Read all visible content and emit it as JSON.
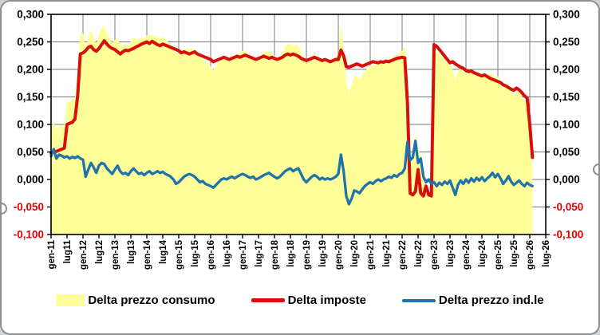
{
  "figure": {
    "background": "#ffffff",
    "border_color": "#8f8f8f",
    "page_background": "#cfd3d6",
    "plot_border_color": "#000000",
    "gridline_color": "#7a7a7a",
    "tick_color": "#000000",
    "axis_label_color": "#000000",
    "negative_label_color": "#e30000"
  },
  "chart_data": {
    "type": "area",
    "x_unit": "month",
    "x_start_label": "gen-11",
    "x_end_label": "lug-26",
    "x_total_months": 186,
    "x_tick_every_months": 6,
    "x_gridline_every_months": 12,
    "x_tick_labels": [
      "gen-11",
      "lug11",
      "gen-12",
      "lug12",
      "gen-13",
      "lug13",
      "gen-14",
      "lug14",
      "gen-15",
      "lug-15",
      "gen-16",
      "lug-16",
      "gen-17",
      "lug-17",
      "gen-18",
      "lug-18",
      "gen-19",
      "lug-19",
      "gen-20",
      "lug-20",
      "gen-21",
      "lug-21",
      "gen-22",
      "lug-22",
      "gen-23",
      "lug-23",
      "gen-24",
      "lug-24",
      "gen-25",
      "lug-25",
      "gen-26",
      "lug-26"
    ],
    "ylim": [
      -0.1,
      0.3
    ],
    "y_step": 0.05,
    "y_ticks": [
      {
        "label": "0,300",
        "value": 0.3
      },
      {
        "label": "0,250",
        "value": 0.25
      },
      {
        "label": "0,200",
        "value": 0.2
      },
      {
        "label": "0,150",
        "value": 0.15
      },
      {
        "label": "0,100",
        "value": 0.1
      },
      {
        "label": "0,050",
        "value": 0.05
      },
      {
        "label": "0,000",
        "value": 0.0
      },
      {
        "label": "-0,050",
        "value": -0.05
      },
      {
        "label": "-0,100",
        "value": -0.1
      }
    ],
    "grid": true,
    "legend_position": "bottom",
    "series": [
      {
        "name": "Delta prezzo consumo",
        "type": "area",
        "color": "#ffff99",
        "values": [
          0.09,
          0.105,
          0.089,
          0.098,
          0.098,
          0.097,
          0.142,
          0.14,
          0.145,
          0.149,
          0.194,
          0.266,
          0.266,
          0.239,
          0.258,
          0.272,
          0.258,
          0.245,
          0.263,
          0.275,
          0.28,
          0.266,
          0.256,
          0.248,
          0.254,
          0.257,
          0.243,
          0.242,
          0.247,
          0.242,
          0.251,
          0.258,
          0.256,
          0.253,
          0.258,
          0.256,
          0.262,
          0.262,
          0.261,
          0.26,
          0.26,
          0.255,
          0.26,
          0.254,
          0.25,
          0.245,
          0.238,
          0.228,
          0.229,
          0.23,
          0.237,
          0.238,
          0.238,
          0.238,
          0.237,
          0.228,
          0.221,
          0.221,
          0.214,
          0.21,
          0.206,
          0.199,
          0.206,
          0.213,
          0.22,
          0.224,
          0.22,
          0.221,
          0.225,
          0.224,
          0.229,
          0.23,
          0.234,
          0.234,
          0.229,
          0.225,
          0.225,
          0.218,
          0.222,
          0.227,
          0.232,
          0.232,
          0.232,
          0.23,
          0.225,
          0.22,
          0.225,
          0.232,
          0.241,
          0.246,
          0.246,
          0.243,
          0.244,
          0.244,
          0.23,
          0.218,
          0.211,
          0.218,
          0.225,
          0.23,
          0.225,
          0.218,
          0.219,
          0.218,
          0.218,
          0.214,
          0.218,
          0.223,
          0.228,
          0.28,
          0.24,
          0.175,
          0.159,
          0.171,
          0.188,
          0.188,
          0.183,
          0.188,
          0.196,
          0.202,
          0.207,
          0.206,
          0.21,
          0.212,
          0.211,
          0.213,
          0.217,
          0.219,
          0.219,
          0.226,
          0.225,
          0.231,
          0.234,
          0.241,
          0.208,
          0.045,
          0.03,
          0.085,
          0.06,
          0.04,
          -0.01,
          0.0,
          -0.02,
          -0.03,
          0.24,
          0.23,
          0.23,
          0.22,
          0.22,
          0.21,
          0.21,
          0.199,
          0.182,
          0.197,
          0.202,
          0.194,
          0.198,
          0.19,
          0.199,
          0.19,
          0.195,
          0.188,
          0.192,
          0.187,
          0.189,
          0.19,
          0.194,
          0.184,
          0.188,
          0.178,
          0.164,
          0.168,
          0.173,
          0.16,
          0.152,
          0.16,
          0.161,
          0.15,
          0.14,
          0.142,
          0.09,
          0.028
        ]
      },
      {
        "name": "Delta imposte",
        "type": "line",
        "color": "#d6100a",
        "stroke_width": 4,
        "values": [
          0.048,
          0.05,
          0.051,
          0.053,
          0.055,
          0.057,
          0.1,
          0.102,
          0.104,
          0.11,
          0.152,
          0.228,
          0.23,
          0.234,
          0.24,
          0.242,
          0.236,
          0.233,
          0.238,
          0.245,
          0.252,
          0.246,
          0.241,
          0.238,
          0.236,
          0.232,
          0.228,
          0.232,
          0.235,
          0.234,
          0.236,
          0.238,
          0.241,
          0.243,
          0.246,
          0.248,
          0.25,
          0.247,
          0.251,
          0.248,
          0.245,
          0.243,
          0.246,
          0.244,
          0.242,
          0.24,
          0.238,
          0.236,
          0.234,
          0.23,
          0.232,
          0.23,
          0.228,
          0.23,
          0.232,
          0.228,
          0.226,
          0.224,
          0.222,
          0.22,
          0.218,
          0.214,
          0.216,
          0.218,
          0.22,
          0.222,
          0.22,
          0.218,
          0.22,
          0.222,
          0.224,
          0.222,
          0.224,
          0.226,
          0.224,
          0.222,
          0.22,
          0.218,
          0.22,
          0.222,
          0.224,
          0.222,
          0.22,
          0.222,
          0.22,
          0.218,
          0.22,
          0.222,
          0.226,
          0.228,
          0.226,
          0.228,
          0.226,
          0.224,
          0.22,
          0.218,
          0.216,
          0.218,
          0.22,
          0.222,
          0.22,
          0.218,
          0.216,
          0.218,
          0.216,
          0.214,
          0.216,
          0.218,
          0.218,
          0.235,
          0.225,
          0.205,
          0.204,
          0.206,
          0.208,
          0.21,
          0.208,
          0.206,
          0.208,
          0.21,
          0.212,
          0.214,
          0.213,
          0.212,
          0.214,
          0.213,
          0.215,
          0.214,
          0.216,
          0.218,
          0.22,
          0.221,
          0.222,
          0.221,
          0.14,
          -0.025,
          -0.028,
          -0.022,
          0.018,
          -0.025,
          -0.03,
          -0.012,
          -0.028,
          -0.03,
          0.245,
          0.242,
          0.236,
          0.23,
          0.224,
          0.218,
          0.212,
          0.214,
          0.21,
          0.207,
          0.204,
          0.202,
          0.198,
          0.196,
          0.197,
          0.194,
          0.192,
          0.19,
          0.188,
          0.19,
          0.187,
          0.184,
          0.182,
          0.18,
          0.178,
          0.176,
          0.172,
          0.17,
          0.167,
          0.164,
          0.162,
          0.166,
          0.163,
          0.158,
          0.152,
          0.148,
          0.1,
          0.04
        ]
      },
      {
        "name": "Delta prezzo ind.le",
        "type": "line",
        "color": "#1f73ab",
        "stroke_width": 3.3,
        "values": [
          0.042,
          0.055,
          0.038,
          0.045,
          0.043,
          0.04,
          0.042,
          0.038,
          0.041,
          0.039,
          0.042,
          0.038,
          0.036,
          0.005,
          0.018,
          0.03,
          0.022,
          0.012,
          0.025,
          0.03,
          0.028,
          0.02,
          0.015,
          0.01,
          0.018,
          0.025,
          0.015,
          0.01,
          0.012,
          0.008,
          0.015,
          0.02,
          0.015,
          0.01,
          0.012,
          0.008,
          0.012,
          0.015,
          0.01,
          0.012,
          0.015,
          0.012,
          0.014,
          0.01,
          0.008,
          0.005,
          0.0,
          -0.008,
          -0.005,
          0.0,
          0.005,
          0.008,
          0.01,
          0.008,
          0.005,
          0.0,
          -0.005,
          -0.003,
          -0.008,
          -0.01,
          -0.012,
          -0.015,
          -0.01,
          -0.005,
          0.0,
          0.002,
          0.0,
          0.003,
          0.005,
          0.002,
          0.005,
          0.008,
          0.01,
          0.008,
          0.005,
          0.003,
          0.005,
          0.0,
          0.002,
          0.005,
          0.008,
          0.01,
          0.012,
          0.008,
          0.005,
          0.002,
          0.005,
          0.01,
          0.015,
          0.018,
          0.02,
          0.015,
          0.018,
          0.02,
          0.01,
          0.0,
          -0.005,
          0.0,
          0.005,
          0.008,
          0.005,
          0.0,
          0.003,
          0.0,
          0.002,
          0.0,
          0.002,
          0.005,
          0.01,
          0.045,
          0.015,
          -0.03,
          -0.045,
          -0.035,
          -0.02,
          -0.022,
          -0.025,
          -0.018,
          -0.012,
          -0.008,
          -0.005,
          -0.008,
          -0.003,
          0.0,
          -0.003,
          0.0,
          0.002,
          0.005,
          0.003,
          0.008,
          0.005,
          0.01,
          0.012,
          0.02,
          0.068,
          0.035,
          0.04,
          0.07,
          0.03,
          0.038,
          0.005,
          -0.005,
          0.0,
          -0.008,
          -0.005,
          -0.012,
          -0.006,
          -0.01,
          -0.004,
          -0.008,
          -0.002,
          -0.015,
          -0.028,
          -0.01,
          -0.002,
          -0.008,
          0.0,
          -0.006,
          0.002,
          -0.004,
          0.003,
          -0.002,
          0.004,
          -0.003,
          0.002,
          0.006,
          0.012,
          0.004,
          0.01,
          0.002,
          -0.008,
          -0.002,
          0.006,
          -0.004,
          -0.01,
          -0.006,
          -0.002,
          -0.008,
          -0.012,
          -0.006,
          -0.01,
          -0.012
        ]
      }
    ]
  },
  "legend": {
    "items": [
      {
        "swatch": "area-swatch-yellow"
      },
      {
        "swatch": "line-swatch-red"
      },
      {
        "swatch": "line-swatch-blue"
      }
    ]
  }
}
